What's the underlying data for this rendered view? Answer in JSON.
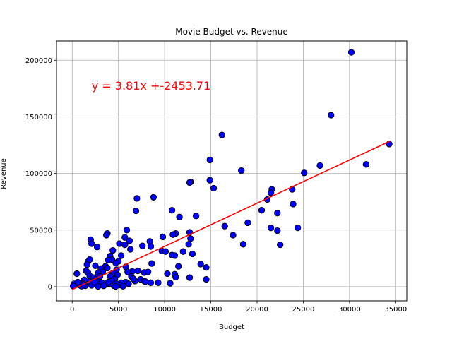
{
  "chart_data": {
    "type": "scatter",
    "title": "Movie Budget vs. Revenue",
    "xlabel": "Budget",
    "ylabel": "Revenue",
    "xlim": [
      -1700,
      36200
    ],
    "ylim": [
      -12500,
      217000
    ],
    "xticks": [
      0,
      5000,
      10000,
      15000,
      20000,
      25000,
      30000,
      35000
    ],
    "yticks": [
      0,
      50000,
      100000,
      150000,
      200000
    ],
    "grid": true,
    "point_color": "#0000ff",
    "point_edge_color": "#000000",
    "line_color": "#ff0000",
    "annotation": {
      "text": "y = 3.81x +-2453.71",
      "color": "#ff0000",
      "x": 2100,
      "y": 174000
    },
    "regression": {
      "slope": 3.81,
      "intercept": -2453.71,
      "x_range": [
        0,
        34300
      ]
    },
    "points": [
      [
        30200,
        207000
      ],
      [
        28000,
        151500
      ],
      [
        16200,
        134000
      ],
      [
        34300,
        126000
      ],
      [
        31800,
        108000
      ],
      [
        26800,
        107000
      ],
      [
        25100,
        100500
      ],
      [
        18300,
        102500
      ],
      [
        12800,
        92500
      ],
      [
        12700,
        92000
      ],
      [
        14900,
        94000
      ],
      [
        15300,
        87000
      ],
      [
        14900,
        112000
      ],
      [
        21600,
        86000
      ],
      [
        21500,
        83000
      ],
      [
        23800,
        86000
      ],
      [
        21100,
        77000
      ],
      [
        23900,
        73000
      ],
      [
        20500,
        67500
      ],
      [
        22200,
        65000
      ],
      [
        19000,
        56500
      ],
      [
        16500,
        53500
      ],
      [
        21500,
        52000
      ],
      [
        24400,
        52000
      ],
      [
        22200,
        49500
      ],
      [
        17400,
        45500
      ],
      [
        18500,
        37500
      ],
      [
        22500,
        37000
      ],
      [
        8800,
        79000
      ],
      [
        7000,
        78000
      ],
      [
        6900,
        67000
      ],
      [
        10800,
        67500
      ],
      [
        11600,
        61500
      ],
      [
        13400,
        62500
      ],
      [
        11200,
        47000
      ],
      [
        10900,
        46000
      ],
      [
        12700,
        48000
      ],
      [
        12800,
        42500
      ],
      [
        12600,
        37500
      ],
      [
        9800,
        44000
      ],
      [
        8400,
        40000
      ],
      [
        8500,
        35500
      ],
      [
        7600,
        36000
      ],
      [
        9700,
        31500
      ],
      [
        10100,
        31000
      ],
      [
        10800,
        28000
      ],
      [
        11100,
        27500
      ],
      [
        13000,
        29000
      ],
      [
        13900,
        20000
      ],
      [
        14500,
        17000
      ],
      [
        11500,
        18000
      ],
      [
        8600,
        20500
      ],
      [
        10300,
        11500
      ],
      [
        11100,
        11000
      ],
      [
        11200,
        8500
      ],
      [
        12700,
        8000
      ],
      [
        14500,
        6500
      ],
      [
        10600,
        3000
      ],
      [
        5900,
        50000
      ],
      [
        6200,
        40500
      ],
      [
        5700,
        43500
      ],
      [
        5700,
        37000
      ],
      [
        5100,
        38000
      ],
      [
        6300,
        33000
      ],
      [
        5000,
        22500
      ],
      [
        4700,
        21000
      ],
      [
        5800,
        17500
      ],
      [
        6500,
        13500
      ],
      [
        7100,
        14000
      ],
      [
        6000,
        13000
      ],
      [
        7800,
        12500
      ],
      [
        8200,
        13000
      ],
      [
        6400,
        9000
      ],
      [
        7400,
        6500
      ],
      [
        7800,
        5000
      ],
      [
        8500,
        3500
      ],
      [
        6800,
        5000
      ],
      [
        5800,
        4000
      ],
      [
        6100,
        2500
      ],
      [
        5300,
        3500
      ],
      [
        5100,
        1500
      ],
      [
        5500,
        500
      ],
      [
        3800,
        47000
      ],
      [
        3700,
        45500
      ],
      [
        2000,
        41500
      ],
      [
        2100,
        38000
      ],
      [
        2700,
        35000
      ],
      [
        4400,
        32000
      ],
      [
        4100,
        27000
      ],
      [
        4300,
        24000
      ],
      [
        3900,
        23500
      ],
      [
        3600,
        18000
      ],
      [
        3800,
        16500
      ],
      [
        4800,
        15000
      ],
      [
        4400,
        12000
      ],
      [
        4900,
        10500
      ],
      [
        4100,
        9000
      ],
      [
        4600,
        6500
      ],
      [
        4300,
        5000
      ],
      [
        4800,
        2500
      ],
      [
        4500,
        1000
      ],
      [
        4700,
        300
      ],
      [
        1700,
        22000
      ],
      [
        1600,
        19500
      ],
      [
        1900,
        24000
      ],
      [
        2500,
        18500
      ],
      [
        3100,
        16000
      ],
      [
        3300,
        13000
      ],
      [
        2800,
        12000
      ],
      [
        1500,
        14000
      ],
      [
        1700,
        12500
      ],
      [
        1900,
        9500
      ],
      [
        2300,
        8000
      ],
      [
        2600,
        6500
      ],
      [
        2900,
        5000
      ],
      [
        3200,
        3500
      ],
      [
        3600,
        2000
      ],
      [
        1800,
        4500
      ],
      [
        1300,
        6000
      ],
      [
        1100,
        3000
      ],
      [
        800,
        1500
      ],
      [
        1000,
        500
      ],
      [
        1400,
        800
      ],
      [
        2100,
        1200
      ],
      [
        2800,
        300
      ],
      [
        3400,
        800
      ],
      [
        4000,
        2800
      ],
      [
        500,
        11500
      ],
      [
        200,
        2500
      ],
      [
        100,
        600
      ],
      [
        600,
        4000
      ],
      [
        1200,
        2000
      ],
      [
        2400,
        4000
      ],
      [
        3000,
        9000
      ],
      [
        3900,
        4000
      ],
      [
        6600,
        7000
      ],
      [
        7900,
        4500
      ],
      [
        9300,
        3500
      ],
      [
        12000,
        31000
      ],
      [
        5300,
        27500
      ]
    ]
  }
}
